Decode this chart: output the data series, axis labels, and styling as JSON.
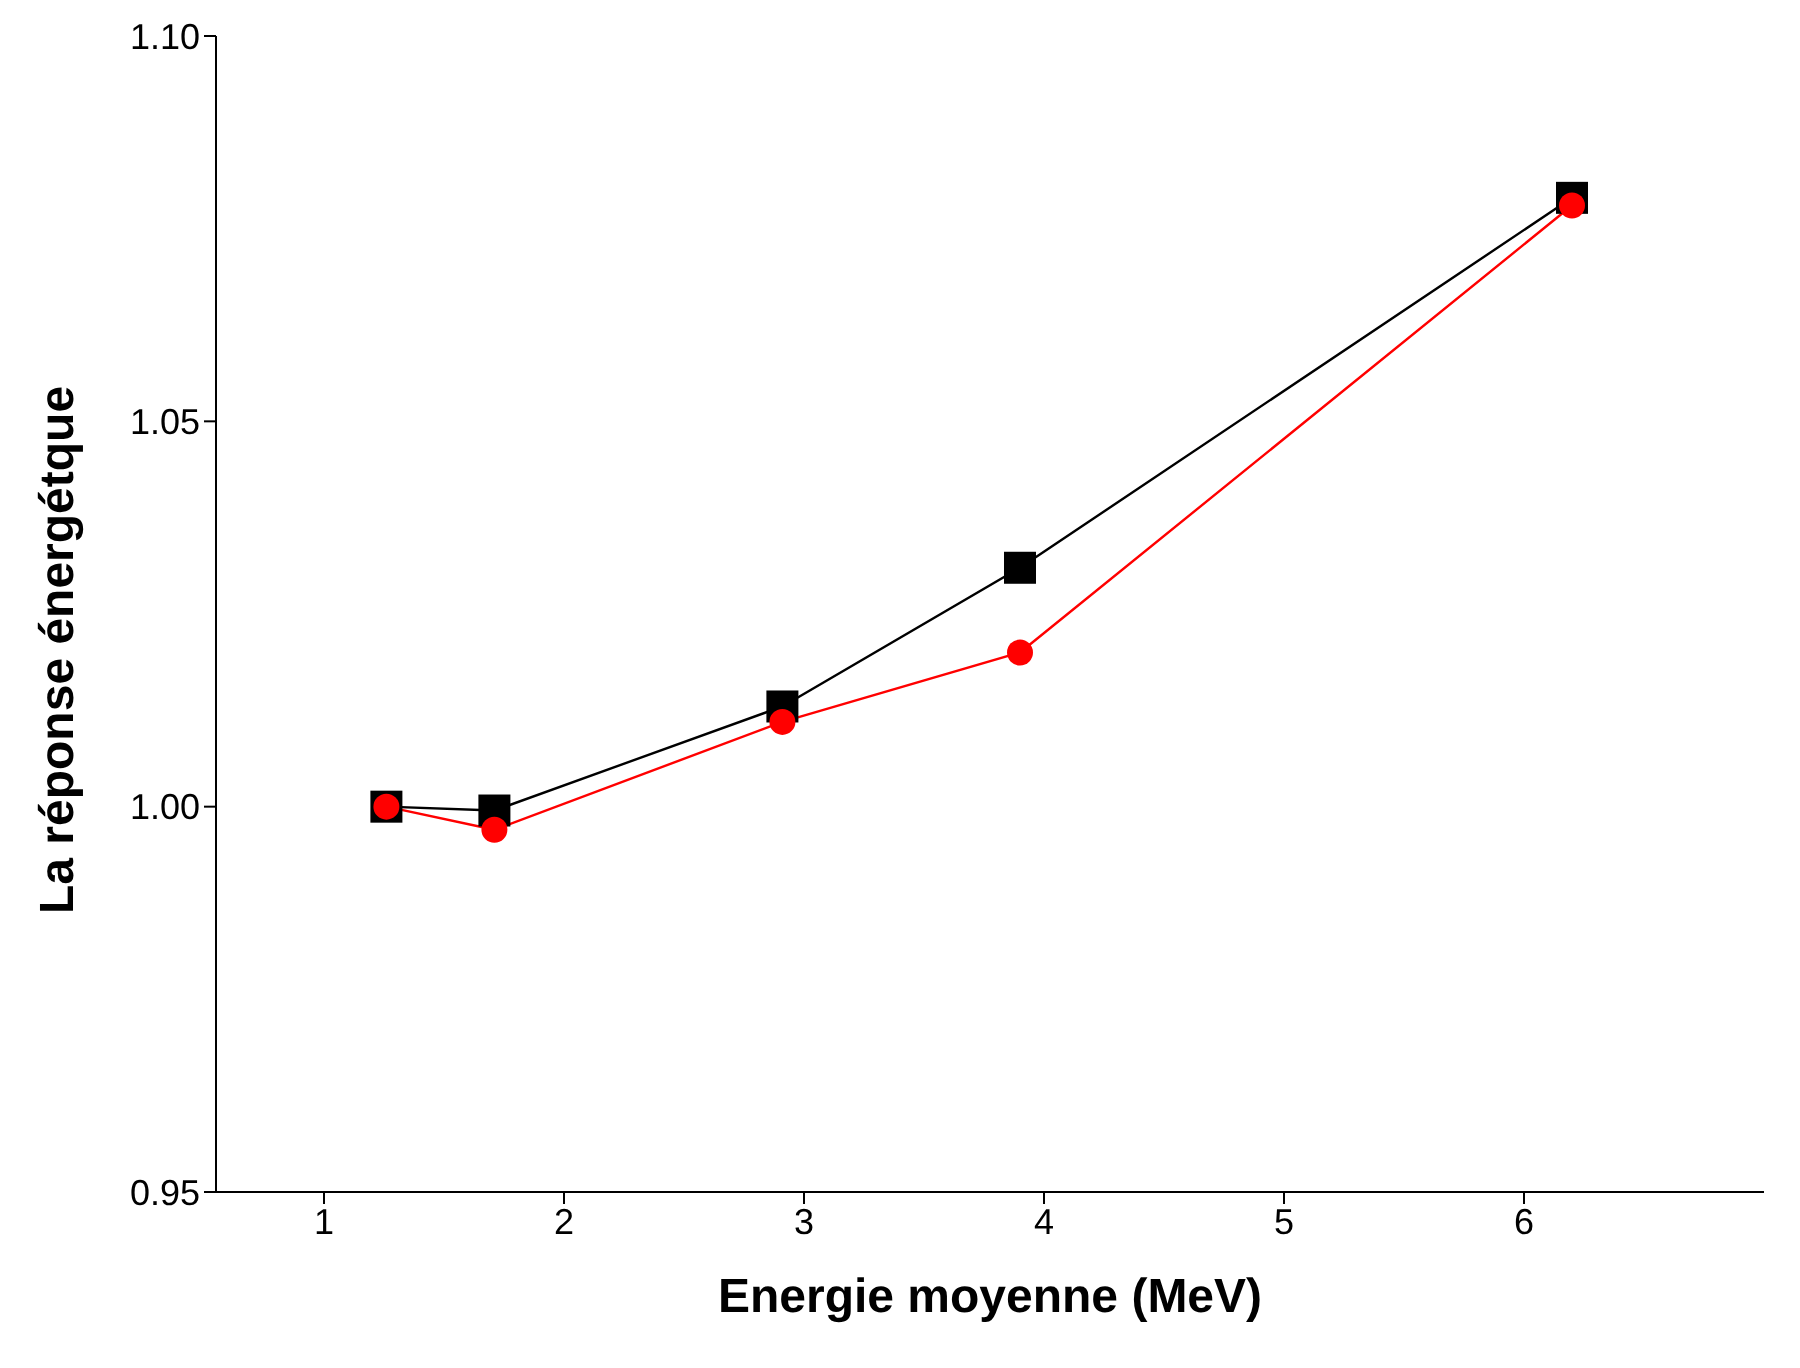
{
  "chart_data": {
    "type": "line",
    "xlabel": "Energie  moyenne (MeV)",
    "ylabel": "La réponse énergétque",
    "xlim": [
      0.55,
      7
    ],
    "xticks": [
      1,
      2,
      3,
      4,
      5,
      6
    ],
    "ylim": [
      0.95,
      1.1
    ],
    "yticks": [
      {
        "value": 0.95,
        "label": "0.95"
      },
      {
        "value": 1,
        "label": "1.00"
      },
      {
        "value": 1.05,
        "label": "1.05"
      },
      {
        "value": 1.1,
        "label": "1.10"
      }
    ],
    "grid": false,
    "legend": false,
    "series": [
      {
        "color": "#000000",
        "marker": "square",
        "x": [
          1.26,
          1.71,
          2.91,
          3.9,
          6.2
        ],
        "values": [
          1.0,
          0.9995,
          1.013,
          1.031,
          1.079
        ]
      },
      {
        "color": "#ff0000",
        "marker": "circle",
        "x": [
          1.26,
          1.71,
          2.91,
          3.9,
          6.2
        ],
        "values": [
          1.0,
          0.997,
          1.011,
          1.02,
          1.078
        ]
      }
    ]
  }
}
